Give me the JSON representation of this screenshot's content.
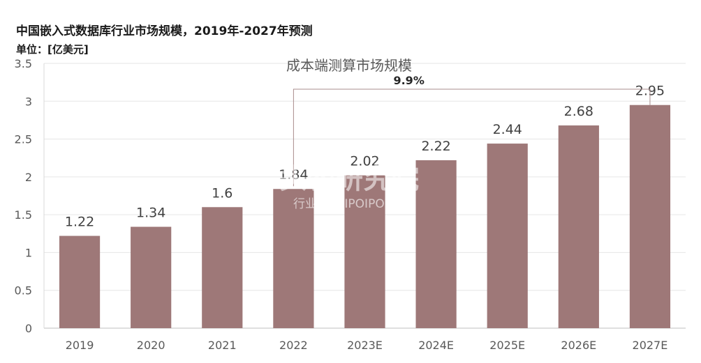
{
  "header": {
    "title": "中国嵌入式数据库行业市场规模，2019年-2027年预测",
    "unit": "单位：[亿美元]"
  },
  "watermark": {
    "main": "头豹研究院",
    "sub": "行业报告 IPOIPO.CN"
  },
  "chart_data": {
    "type": "bar",
    "title": "中国嵌入式数据库行业市场规模，2019年-2027年预测",
    "subtitle": "成本端测算市场规模",
    "categories": [
      "2019",
      "2020",
      "2021",
      "2022",
      "2023E",
      "2024E",
      "2025E",
      "2026E",
      "2027E"
    ],
    "values": [
      1.22,
      1.34,
      1.6,
      1.84,
      2.02,
      2.22,
      2.44,
      2.68,
      2.95
    ],
    "value_labels": [
      "1.22",
      "1.34",
      "1.6",
      "1.84",
      "2.02",
      "2.22",
      "2.44",
      "2.68",
      "2.95"
    ],
    "ylim": [
      0,
      3.5
    ],
    "yticks": [
      0,
      0.5,
      1,
      1.5,
      2,
      2.5,
      3,
      3.5
    ],
    "ytick_labels": [
      "0",
      "0.5",
      "1",
      "1.5",
      "2",
      "2.5",
      "3",
      "3.5"
    ],
    "bar_color": "#9e7878",
    "grid": true,
    "annotation": {
      "text": "9.9%",
      "from": "2022",
      "to": "2027E"
    }
  }
}
